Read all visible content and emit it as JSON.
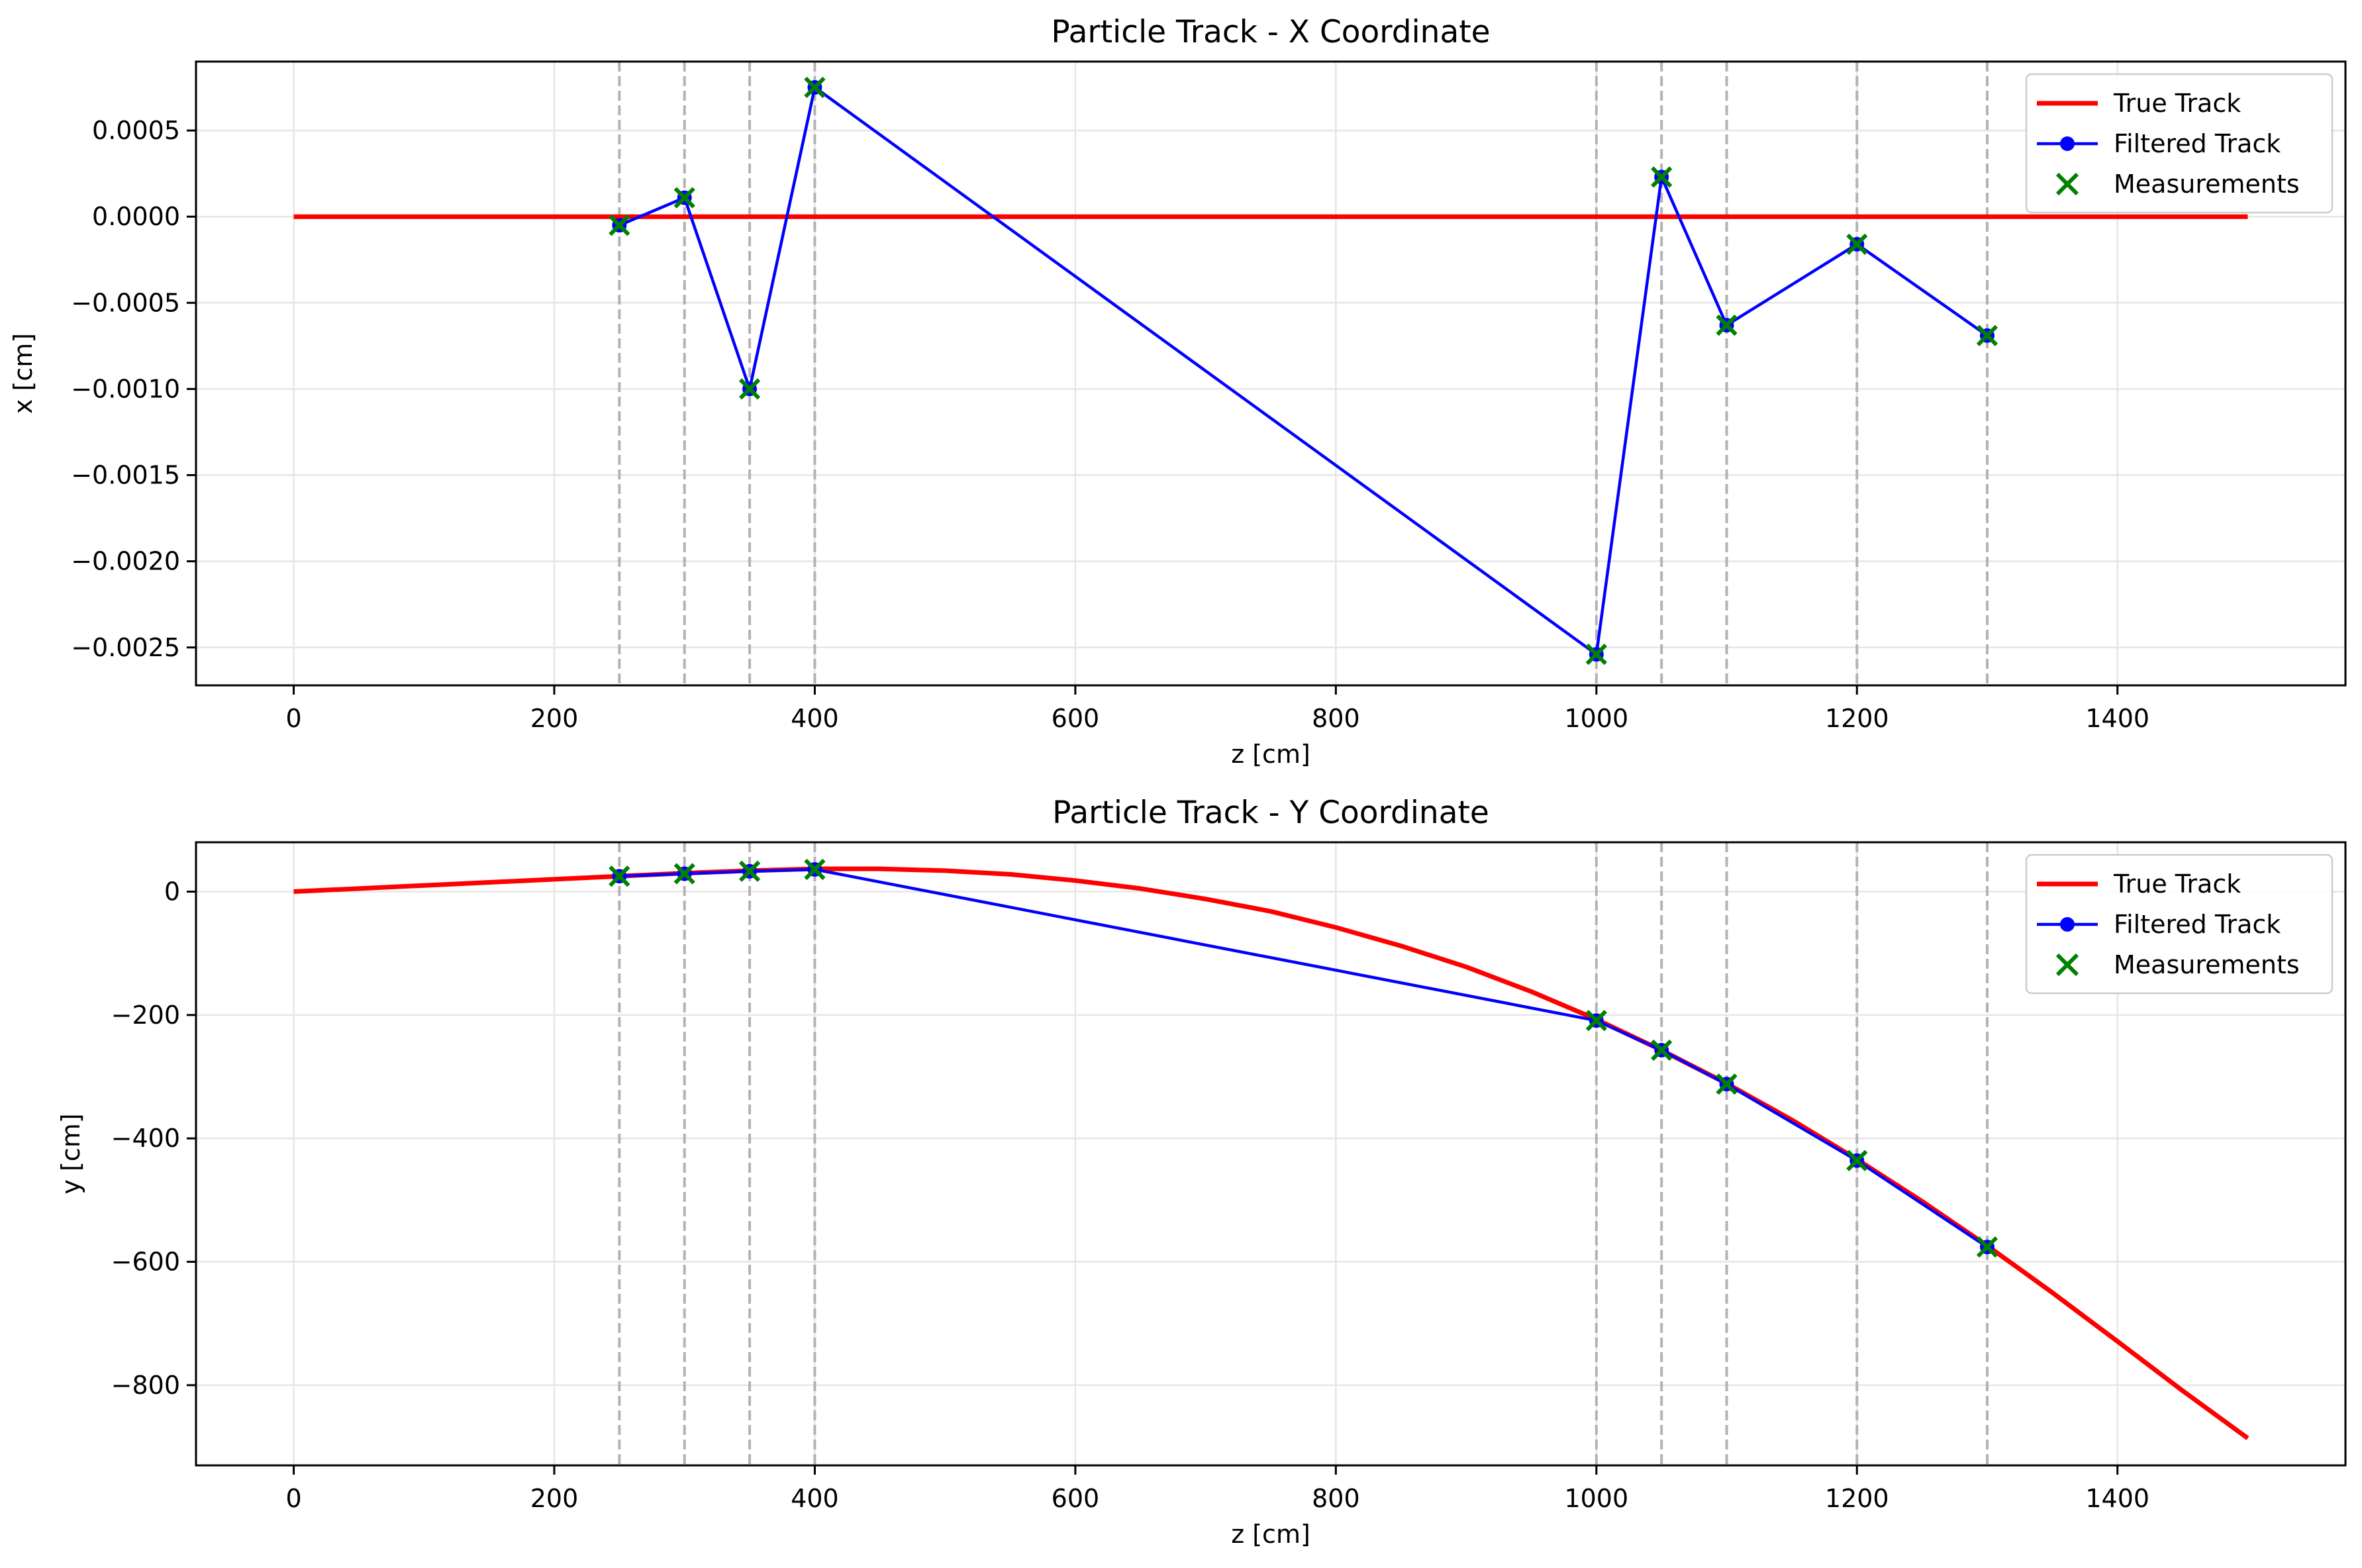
{
  "chart_data": [
    {
      "type": "line",
      "title": "Particle Track - X Coordinate",
      "xlabel": "z [cm]",
      "ylabel": "x [cm]",
      "xlim": [
        -75,
        1575
      ],
      "ylim": [
        -0.00272,
        0.0009
      ],
      "xticks": [
        0,
        200,
        400,
        600,
        800,
        1000,
        1200,
        1400
      ],
      "xtick_labels": [
        "0",
        "200",
        "400",
        "600",
        "800",
        "1000",
        "1200",
        "1400"
      ],
      "yticks": [
        0.0005,
        0.0,
        -0.0005,
        -0.001,
        -0.0015,
        -0.002,
        -0.0025
      ],
      "ytick_labels": [
        "0.0005",
        "0.0000",
        "−0.0005",
        "−0.0010",
        "−0.0015",
        "−0.0020",
        "−0.0025"
      ],
      "grid": true,
      "legend_position": "top-right",
      "detector_planes": [
        250,
        300,
        350,
        400,
        1000,
        1050,
        1100,
        1200,
        1300
      ],
      "series": [
        {
          "name": "True Track",
          "style": "line",
          "color": "#ff0000",
          "x": [
            0,
            1500
          ],
          "y": [
            0.0,
            0.0
          ]
        },
        {
          "name": "Filtered Track",
          "style": "line-marker",
          "color": "#0000ff",
          "x": [
            250,
            300,
            350,
            400,
            1000,
            1050,
            1100,
            1200,
            1300
          ],
          "y": [
            -5e-05,
            0.00011,
            -0.001,
            0.00075,
            -0.00254,
            0.00023,
            -0.00063,
            -0.00016,
            -0.00069
          ]
        },
        {
          "name": "Measurements",
          "style": "x-marker",
          "color": "#008000",
          "x": [
            250,
            300,
            350,
            400,
            1000,
            1050,
            1100,
            1200,
            1300
          ],
          "y": [
            -5e-05,
            0.00011,
            -0.001,
            0.00075,
            -0.00254,
            0.00023,
            -0.00063,
            -0.00016,
            -0.00069
          ]
        }
      ]
    },
    {
      "type": "line",
      "title": "Particle Track - Y Coordinate",
      "xlabel": "z [cm]",
      "ylabel": "y [cm]",
      "xlim": [
        -75,
        1575
      ],
      "ylim": [
        -930,
        80
      ],
      "xticks": [
        0,
        200,
        400,
        600,
        800,
        1000,
        1200,
        1400
      ],
      "xtick_labels": [
        "0",
        "200",
        "400",
        "600",
        "800",
        "1000",
        "1200",
        "1400"
      ],
      "yticks": [
        0,
        -200,
        -400,
        -600,
        -800
      ],
      "ytick_labels": [
        "0",
        "−200",
        "−400",
        "−600",
        "−800"
      ],
      "grid": true,
      "legend_position": "top-right",
      "detector_planes": [
        250,
        300,
        350,
        400,
        1000,
        1050,
        1100,
        1200,
        1300
      ],
      "series": [
        {
          "name": "True Track",
          "style": "line",
          "color": "#ff0000",
          "x": [
            0,
            100,
            200,
            250,
            300,
            350,
            400,
            450,
            500,
            550,
            600,
            650,
            700,
            750,
            800,
            850,
            900,
            950,
            1000,
            1050,
            1100,
            1150,
            1200,
            1250,
            1300,
            1350,
            1400,
            1450,
            1500
          ],
          "y": [
            0,
            10,
            20,
            25,
            30,
            34,
            37,
            37,
            34,
            28,
            18,
            5,
            -12,
            -32,
            -58,
            -88,
            -122,
            -162,
            -207,
            -257,
            -311,
            -370,
            -434,
            -502,
            -574,
            -650,
            -729,
            -809,
            -886
          ]
        },
        {
          "name": "Filtered Track",
          "style": "line-marker",
          "color": "#0000ff",
          "x": [
            250,
            300,
            350,
            400,
            1000,
            1050,
            1100,
            1200,
            1300
          ],
          "y": [
            25,
            29,
            33,
            36,
            -209,
            -257,
            -312,
            -436,
            -576
          ]
        },
        {
          "name": "Measurements",
          "style": "x-marker",
          "color": "#008000",
          "x": [
            250,
            300,
            350,
            400,
            1000,
            1050,
            1100,
            1200,
            1300
          ],
          "y": [
            25,
            29,
            33,
            36,
            -209,
            -257,
            -312,
            -436,
            -576
          ]
        }
      ]
    }
  ]
}
